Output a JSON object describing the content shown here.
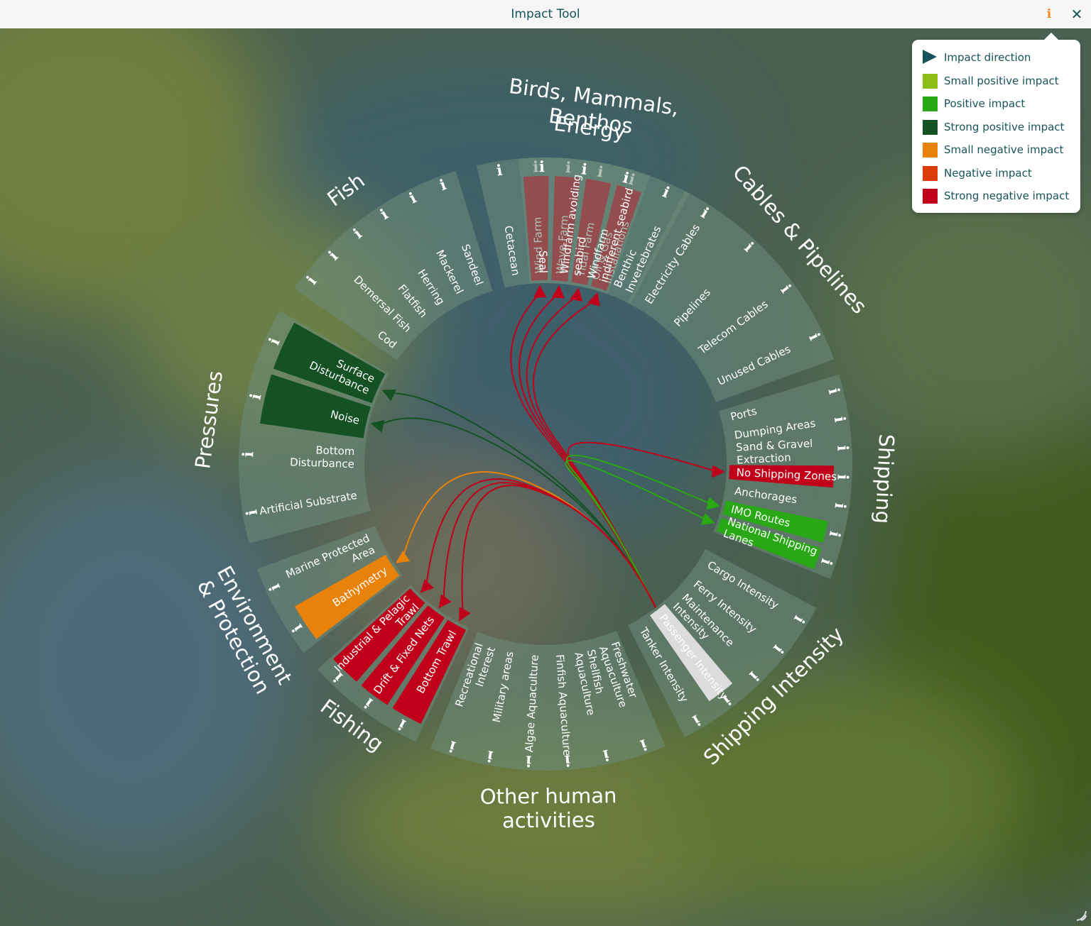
{
  "window": {
    "title": "Impact Tool",
    "info_icon": "i",
    "close_icon": "✕"
  },
  "colors": {
    "sector_bg": "#6e8c7c",
    "small_positive": "#8cbe14",
    "positive": "#28a814",
    "strong_positive": "#145223",
    "small_negative": "#e8820a",
    "negative": "#dc3c0a",
    "strong_negative": "#c0001a",
    "selected": "#dcdcdc",
    "title_text": "#17535a"
  },
  "legend": [
    {
      "label": "Impact direction",
      "color": "#17535a",
      "kind": "arrow"
    },
    {
      "label": "Small positive impact",
      "color": "#8cbe14",
      "kind": "swatch"
    },
    {
      "label": "Positive impact",
      "color": "#28a814",
      "kind": "swatch"
    },
    {
      "label": "Strong positive impact",
      "color": "#145223",
      "kind": "swatch"
    },
    {
      "label": "Small negative impact",
      "color": "#e8820a",
      "kind": "swatch"
    },
    {
      "label": "Negative impact",
      "color": "#dc3c0a",
      "kind": "swatch"
    },
    {
      "label": "Strong negative impact",
      "color": "#c0001a",
      "kind": "swatch"
    }
  ],
  "groups": [
    {
      "id": "energy",
      "label": [
        "Energy"
      ],
      "items": [
        {
          "label": [
            "Wind Farm"
          ],
          "state": "strong_negative"
        },
        {
          "label": [
            "Wave Farm"
          ],
          "state": "strong_negative"
        },
        {
          "label": [
            "Tidal Farm"
          ],
          "state": "strong_negative"
        },
        {
          "label": [
            "Oil & Gas",
            "Installations"
          ],
          "state": "strong_negative"
        }
      ]
    },
    {
      "id": "cables",
      "label": [
        "Cables & Pipelines"
      ],
      "items": [
        {
          "label": [
            "Electricity Cables"
          ],
          "state": "none"
        },
        {
          "label": [
            "Pipelines"
          ],
          "state": "none"
        },
        {
          "label": [
            "Telecom Cables"
          ],
          "state": "none"
        },
        {
          "label": [
            "Unused Cables"
          ],
          "state": "none"
        }
      ]
    },
    {
      "id": "shipping",
      "label": [
        "Shipping"
      ],
      "items": [
        {
          "label": [
            "Ports"
          ],
          "state": "none"
        },
        {
          "label": [
            "Dumping Areas"
          ],
          "state": "none"
        },
        {
          "label": [
            "Sand & Gravel",
            "Extraction"
          ],
          "state": "none"
        },
        {
          "label": [
            "No Shipping Zones"
          ],
          "state": "strong_negative"
        },
        {
          "label": [
            "Anchorages"
          ],
          "state": "none"
        },
        {
          "label": [
            "IMO Routes"
          ],
          "state": "positive"
        },
        {
          "label": [
            "National Shipping",
            "Lanes"
          ],
          "state": "positive"
        }
      ]
    },
    {
      "id": "shipping_intensity",
      "label": [
        "Shipping Intensity"
      ],
      "items": [
        {
          "label": [
            "Cargo Intensity"
          ],
          "state": "none"
        },
        {
          "label": [
            "Ferry Intensity"
          ],
          "state": "none"
        },
        {
          "label": [
            "Maintenance",
            "Intensity"
          ],
          "state": "none"
        },
        {
          "label": [
            "Passenger Intensity"
          ],
          "state": "selected"
        },
        {
          "label": [
            "Tanker Intensity"
          ],
          "state": "none"
        }
      ]
    },
    {
      "id": "other",
      "label": [
        "Other human",
        "activities"
      ],
      "items": [
        {
          "label": [
            "Freshwater",
            "Aquaculture"
          ],
          "state": "none"
        },
        {
          "label": [
            "Shellfish",
            "Aquaculture"
          ],
          "state": "none"
        },
        {
          "label": [
            "Finfish Aquaculture"
          ],
          "state": "none"
        },
        {
          "label": [
            "Algae Aquaculture"
          ],
          "state": "none"
        },
        {
          "label": [
            "Military areas"
          ],
          "state": "none"
        },
        {
          "label": [
            "Recreational",
            "Interest"
          ],
          "state": "none"
        }
      ]
    },
    {
      "id": "fishing",
      "label": [
        "Fishing"
      ],
      "items": [
        {
          "label": [
            "Bottom Trawl"
          ],
          "state": "strong_negative"
        },
        {
          "label": [
            "Drift & Fixed Nets"
          ],
          "state": "strong_negative"
        },
        {
          "label": [
            "Industrial & Pelagic",
            "Trawl"
          ],
          "state": "strong_negative"
        }
      ]
    },
    {
      "id": "environment",
      "label": [
        "Environment",
        "& Protection"
      ],
      "items": [
        {
          "label": [
            "Bathymetry"
          ],
          "state": "small_negative"
        },
        {
          "label": [
            "Marine Protected",
            "Area"
          ],
          "state": "none"
        }
      ]
    },
    {
      "id": "pressures",
      "label": [
        "Pressures"
      ],
      "items": [
        {
          "label": [
            "Artificial Substrate"
          ],
          "state": "none"
        },
        {
          "label": [
            "Bottom",
            "Disturbance"
          ],
          "state": "none"
        },
        {
          "label": [
            "Noise"
          ],
          "state": "strong_positive"
        },
        {
          "label": [
            "Surface",
            "Disturbance"
          ],
          "state": "strong_positive"
        }
      ]
    },
    {
      "id": "fish",
      "label": [
        "Fish"
      ],
      "items": [
        {
          "label": [
            "Cod"
          ],
          "state": "none"
        },
        {
          "label": [
            "Demersal Fish"
          ],
          "state": "none"
        },
        {
          "label": [
            "Flatfish"
          ],
          "state": "none"
        },
        {
          "label": [
            "Herring"
          ],
          "state": "none"
        },
        {
          "label": [
            "Mackerel"
          ],
          "state": "none"
        },
        {
          "label": [
            "Sandeel"
          ],
          "state": "none"
        }
      ]
    },
    {
      "id": "birds",
      "label": [
        "Birds, Mammals,",
        "Benthos"
      ],
      "items": [
        {
          "label": [
            "Cetacean"
          ],
          "state": "none"
        },
        {
          "label": [
            "Seal"
          ],
          "state": "none"
        },
        {
          "label": [
            "Windfarm avoiding",
            "seabird"
          ],
          "state": "none"
        },
        {
          "label": [
            "Windfarm",
            "indifferent seabird"
          ],
          "state": "none"
        },
        {
          "label": [
            "Benthic",
            "Invertebrates"
          ],
          "state": "none"
        }
      ]
    }
  ],
  "source": {
    "group": "shipping_intensity",
    "item": "Passenger Intensity"
  },
  "links": [
    {
      "to_group": "energy",
      "to_item": "Wind Farm",
      "impact": "strong_negative"
    },
    {
      "to_group": "energy",
      "to_item": "Wave Farm",
      "impact": "strong_negative"
    },
    {
      "to_group": "energy",
      "to_item": "Tidal Farm",
      "impact": "strong_negative"
    },
    {
      "to_group": "energy",
      "to_item": "Oil & Gas Installations",
      "impact": "strong_negative"
    },
    {
      "to_group": "shipping",
      "to_item": "No Shipping Zones",
      "impact": "strong_negative"
    },
    {
      "to_group": "shipping",
      "to_item": "IMO Routes",
      "impact": "positive"
    },
    {
      "to_group": "shipping",
      "to_item": "National Shipping Lanes",
      "impact": "positive"
    },
    {
      "to_group": "pressures",
      "to_item": "Surface Disturbance",
      "impact": "strong_positive"
    },
    {
      "to_group": "pressures",
      "to_item": "Noise",
      "impact": "strong_positive"
    },
    {
      "to_group": "environment",
      "to_item": "Bathymetry",
      "impact": "small_negative"
    },
    {
      "to_group": "fishing",
      "to_item": "Industrial & Pelagic Trawl",
      "impact": "strong_negative"
    },
    {
      "to_group": "fishing",
      "to_item": "Drift & Fixed Nets",
      "impact": "strong_negative"
    },
    {
      "to_group": "fishing",
      "to_item": "Bottom Trawl",
      "impact": "strong_negative"
    }
  ]
}
